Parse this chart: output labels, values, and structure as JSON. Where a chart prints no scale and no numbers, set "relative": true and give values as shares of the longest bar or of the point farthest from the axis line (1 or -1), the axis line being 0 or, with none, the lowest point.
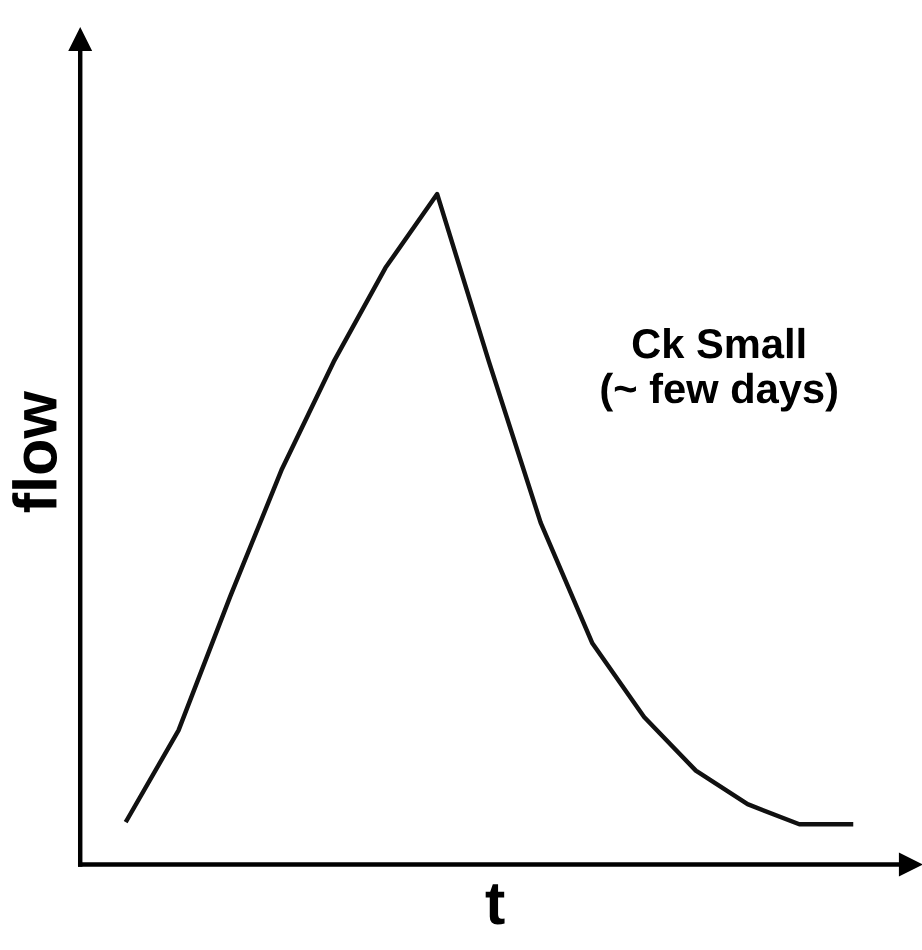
{
  "chart_data": {
    "type": "line",
    "relative": true,
    "xlabel": "t",
    "ylabel": "flow",
    "annotations": [
      "Ck Small\n(~ few days)"
    ],
    "categories": [
      null,
      null,
      null,
      null,
      null,
      null,
      null,
      null,
      null,
      null,
      null,
      null,
      null,
      null,
      null
    ],
    "series": [
      {
        "color": "#111111",
        "values": [
          0.066,
          0.2,
          0.4,
          0.59,
          0.75,
          0.89,
          1.0,
          0.75,
          0.51,
          0.33,
          0.22,
          0.14,
          0.09,
          0.06,
          0.06
        ]
      }
    ],
    "marker": "none",
    "line_style": "solid",
    "grid": false,
    "legend": false
  }
}
